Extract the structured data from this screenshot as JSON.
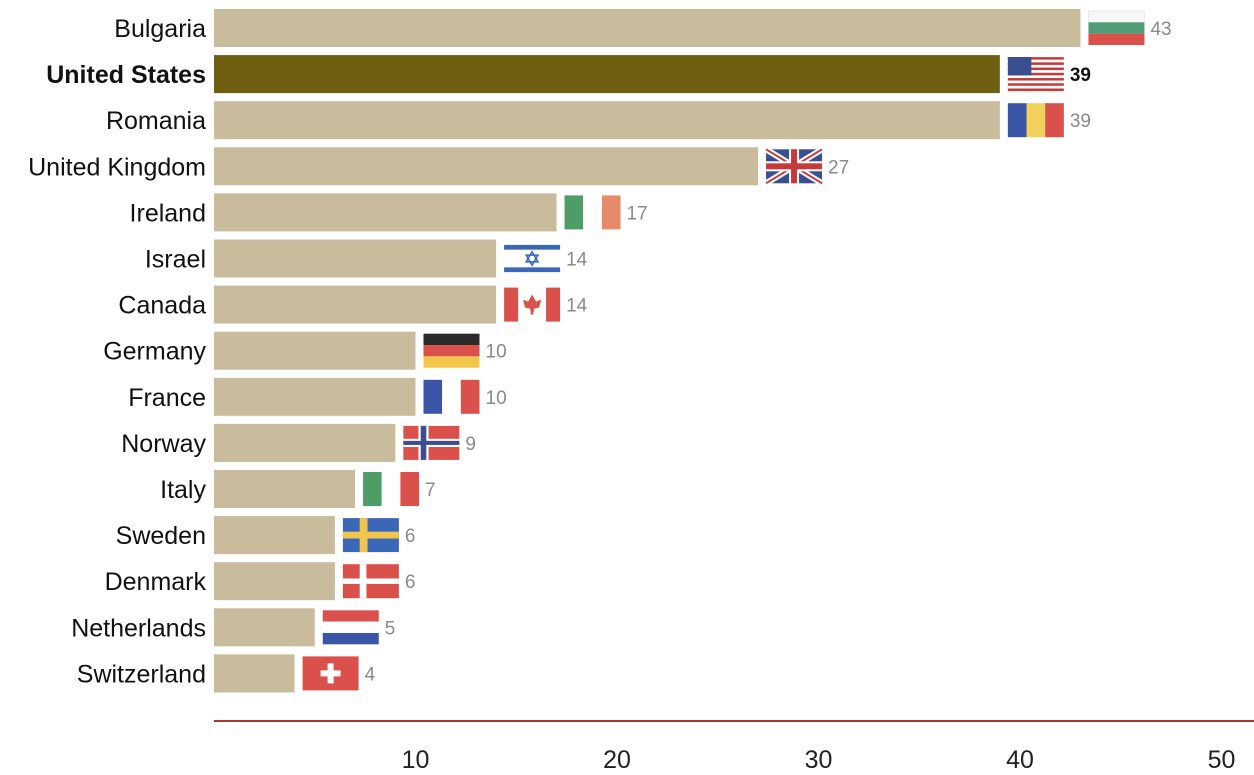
{
  "chart_data": {
    "type": "bar",
    "orientation": "horizontal",
    "title": "",
    "xlabel": "",
    "ylabel": "",
    "xlim": [
      0,
      50
    ],
    "xticks": [
      10,
      20,
      30,
      40,
      50
    ],
    "grid": false,
    "highlight": "United States",
    "categories": [
      "Bulgaria",
      "United States",
      "Romania",
      "United Kingdom",
      "Ireland",
      "Israel",
      "Canada",
      "Germany",
      "France",
      "Norway",
      "Italy",
      "Sweden",
      "Denmark",
      "Netherlands",
      "Switzerland"
    ],
    "values": [
      43,
      39,
      39,
      27,
      17,
      14,
      14,
      10,
      10,
      9,
      7,
      6,
      6,
      5,
      4
    ],
    "flags": [
      "bulgaria-flag",
      "usa-flag",
      "romania-flag",
      "uk-flag",
      "ireland-flag",
      "israel-flag",
      "canada-flag",
      "germany-flag",
      "france-flag",
      "norway-flag",
      "italy-flag",
      "sweden-flag",
      "denmark-flag",
      "netherlands-flag",
      "switzerland-flag"
    ],
    "colors": {
      "bar": "#c8bc9c",
      "highlight": "#6f5f10",
      "axis": "#a83a2a"
    }
  }
}
